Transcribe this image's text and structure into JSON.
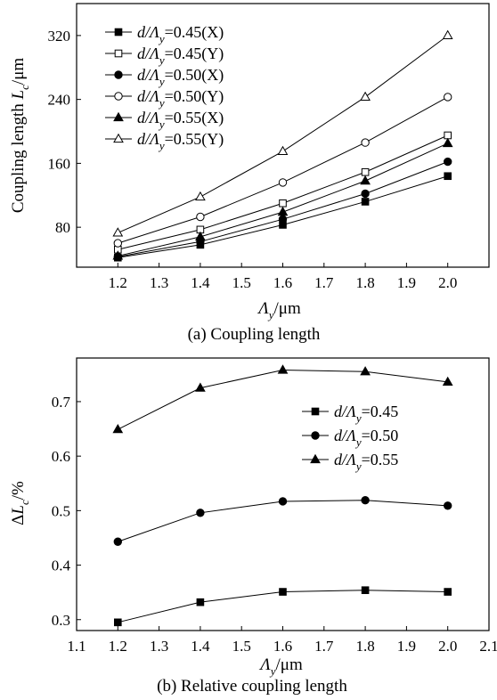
{
  "chart_data": [
    {
      "type": "line",
      "caption": "(a) Coupling length",
      "xlabel": "Λy/μm",
      "ylabel": "Coupling length Lc/μm",
      "xlim": [
        1.1,
        2.1
      ],
      "ylim": [
        30,
        360
      ],
      "xticks": [
        1.2,
        1.3,
        1.4,
        1.5,
        1.6,
        1.7,
        1.8,
        1.9,
        2.0
      ],
      "xtick_labels": [
        "1.2",
        "1.3",
        "1.4",
        "1.5",
        "1.6",
        "1.7",
        "1.8",
        "1.9",
        "2.0"
      ],
      "yticks": [
        80,
        160,
        240,
        320
      ],
      "ytick_labels": [
        "80",
        "160",
        "240",
        "320"
      ],
      "x": [
        1.2,
        1.4,
        1.6,
        1.8,
        2.0
      ],
      "legend_position": "top-left",
      "series": [
        {
          "name": "d/Λy=0.45(X)",
          "marker": "square-filled",
          "values": [
            42,
            58,
            83,
            112,
            144
          ]
        },
        {
          "name": "d/Λy=0.45(Y)",
          "marker": "square-open",
          "values": [
            52,
            77,
            110,
            149,
            195
          ]
        },
        {
          "name": "d/Λy=0.50(X)",
          "marker": "circle-filled",
          "values": [
            43,
            62,
            90,
            122,
            162
          ]
        },
        {
          "name": "d/Λy=0.50(Y)",
          "marker": "circle-open",
          "values": [
            60,
            93,
            136,
            186,
            243
          ]
        },
        {
          "name": "d/Λy=0.55(X)",
          "marker": "triangle-filled",
          "values": [
            44,
            68,
            99,
            138,
            185
          ]
        },
        {
          "name": "d/Λy=0.55(Y)",
          "marker": "triangle-open",
          "values": [
            73,
            118,
            175,
            243,
            320
          ]
        }
      ]
    },
    {
      "type": "line",
      "caption": "(b) Relative coupling length",
      "xlabel": "Λy/μm",
      "ylabel": "ΔLc/%",
      "xlim": [
        1.1,
        2.1
      ],
      "ylim": [
        0.28,
        0.78
      ],
      "xticks": [
        1.1,
        1.2,
        1.3,
        1.4,
        1.5,
        1.6,
        1.7,
        1.8,
        1.9,
        2.0,
        2.1
      ],
      "xtick_labels": [
        "1.1",
        "1.2",
        "1.3",
        "1.4",
        "1.5",
        "1.6",
        "1.7",
        "1.8",
        "1.9",
        "2.0",
        "2.1"
      ],
      "yticks": [
        0.3,
        0.4,
        0.5,
        0.6,
        0.7
      ],
      "ytick_labels": [
        "0.3",
        "0.4",
        "0.5",
        "0.6",
        "0.7"
      ],
      "x": [
        1.2,
        1.4,
        1.6,
        1.8,
        2.0
      ],
      "legend_position": "top-right",
      "series": [
        {
          "name": "d/Λy=0.45",
          "marker": "square-filled",
          "values": [
            0.295,
            0.332,
            0.351,
            0.354,
            0.351
          ]
        },
        {
          "name": "d/Λy=0.50",
          "marker": "circle-filled",
          "values": [
            0.443,
            0.496,
            0.517,
            0.519,
            0.509
          ]
        },
        {
          "name": "d/Λy=0.55",
          "marker": "triangle-filled",
          "values": [
            0.649,
            0.725,
            0.758,
            0.755,
            0.736
          ]
        }
      ]
    }
  ]
}
